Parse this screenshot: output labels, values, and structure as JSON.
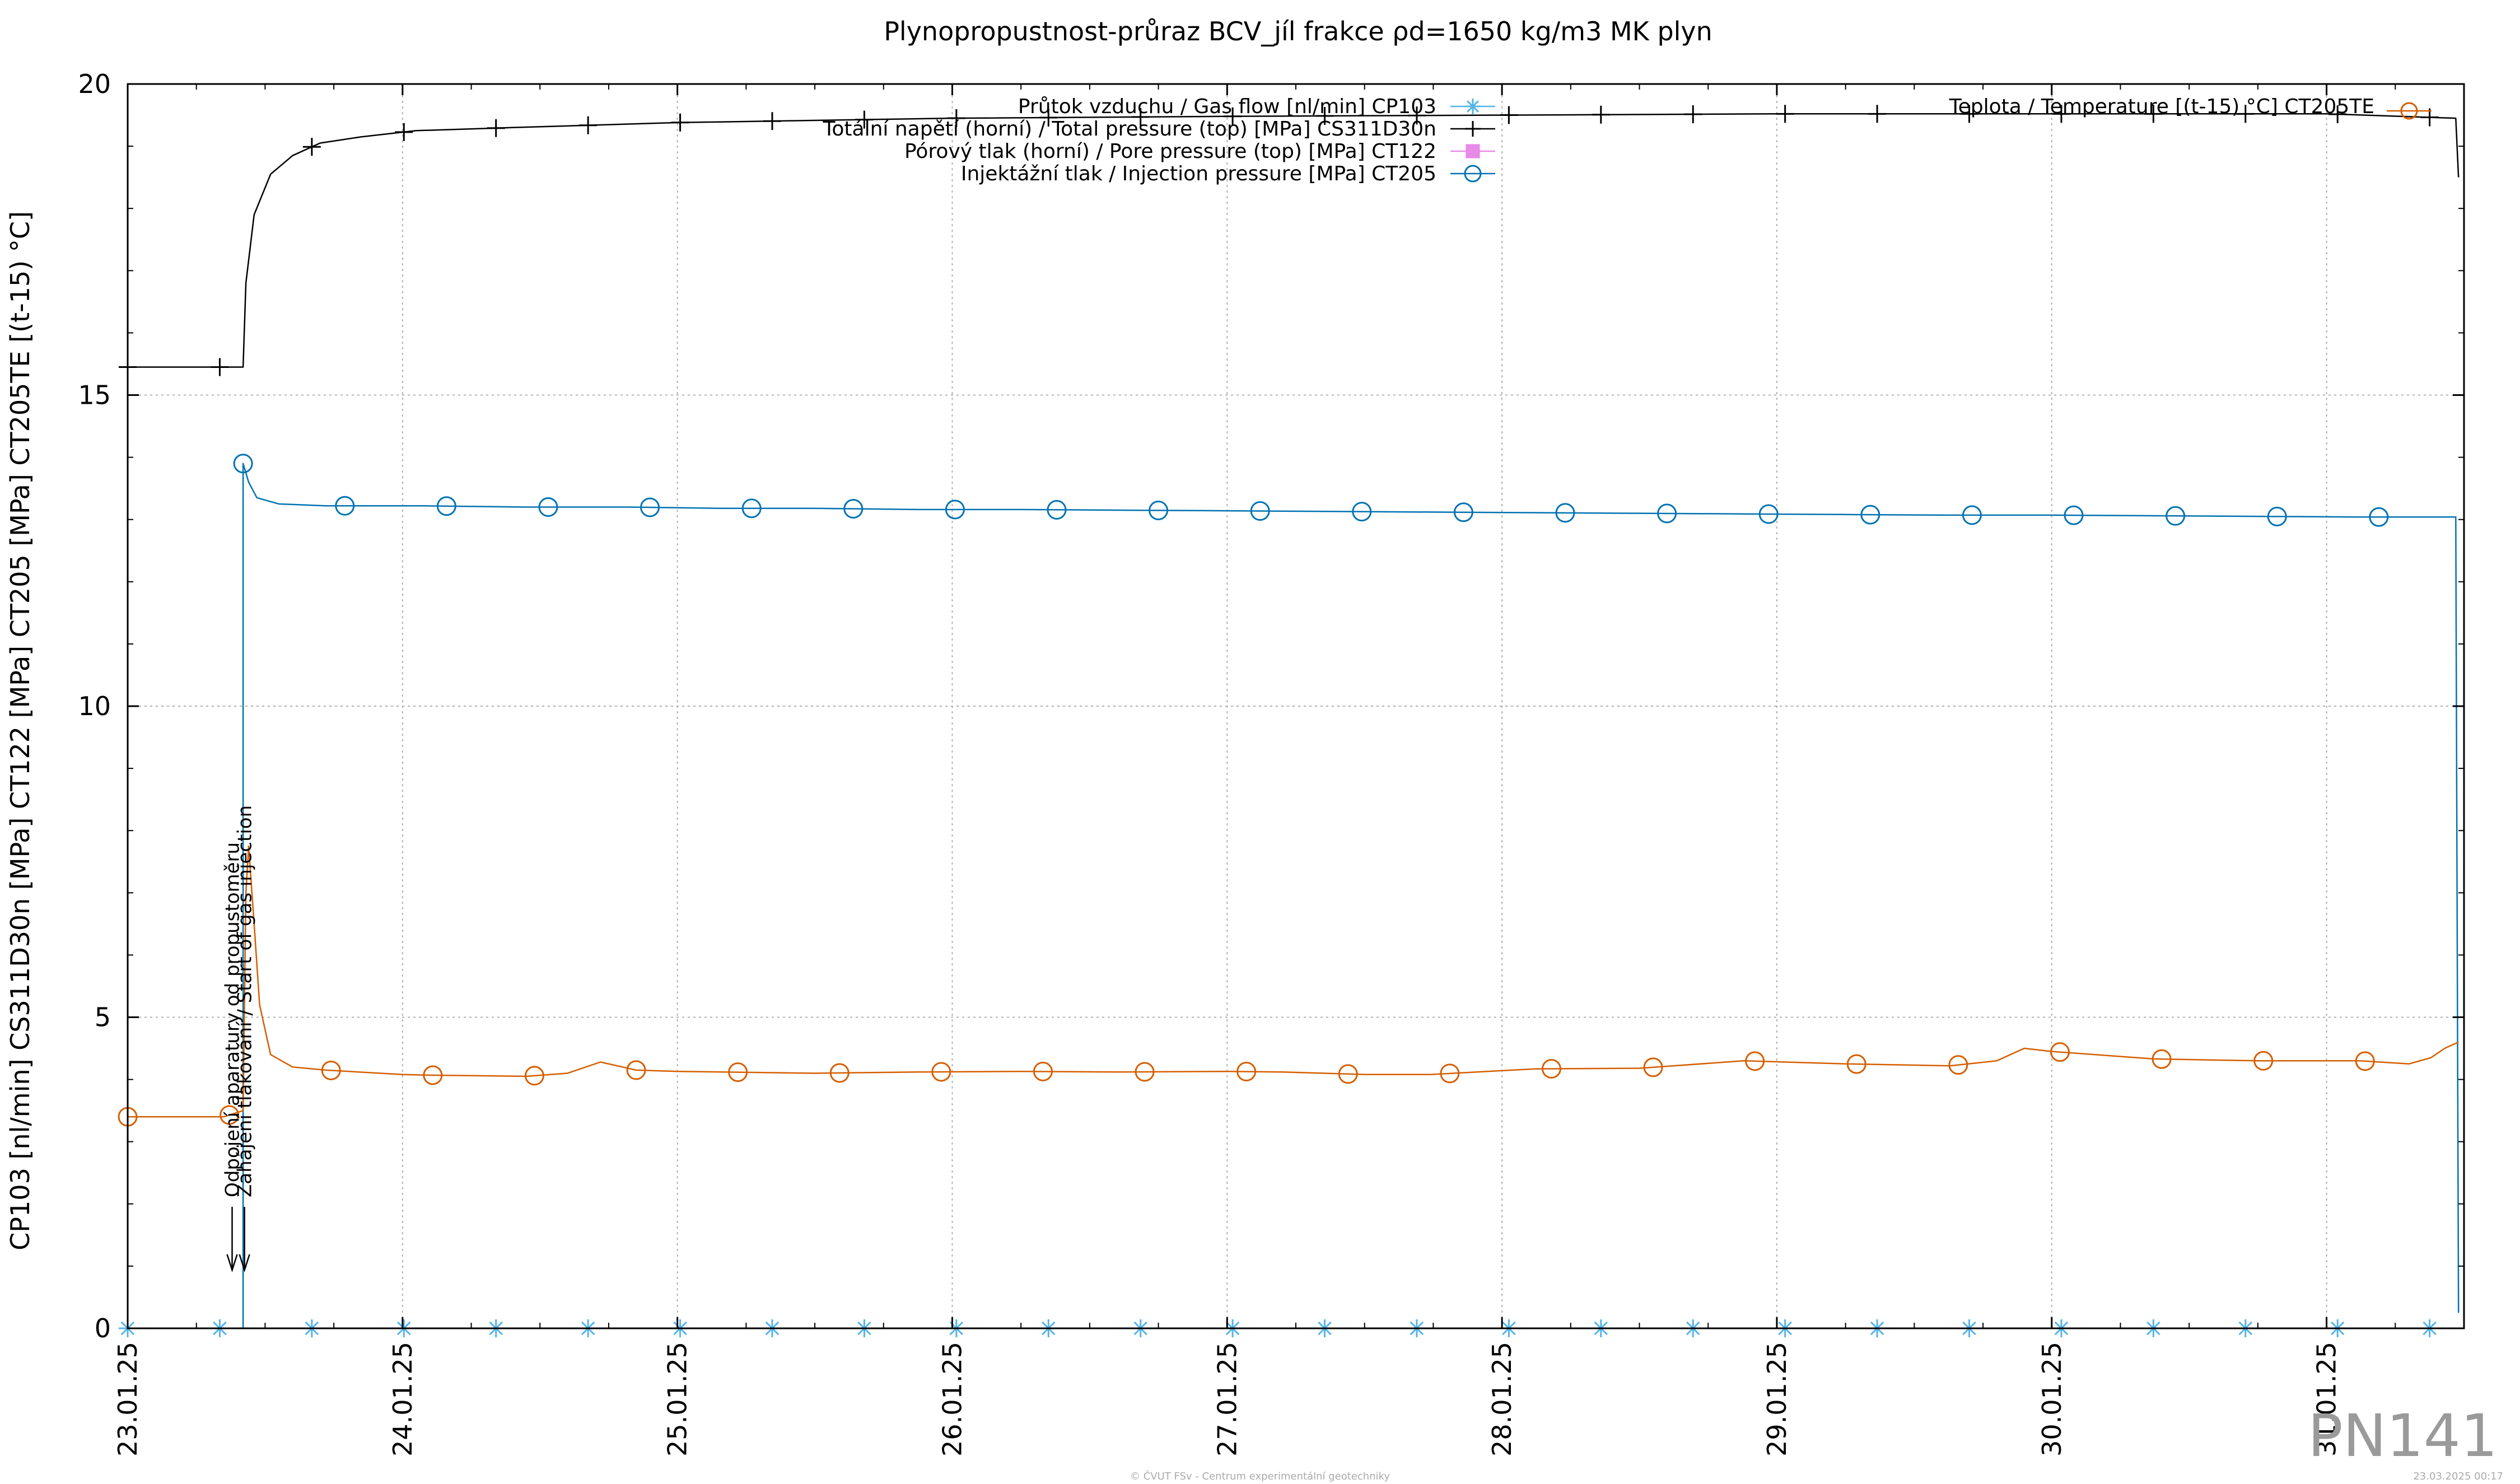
{
  "chart_data": {
    "type": "line",
    "title": "Plynopropustnost-průraz BCV_jíl frakce ρd=1650 kg/m3 MK plyn",
    "ylabel": "CP103 [nl/min] CS311D30n [MPa] CT122 [MPa] CT205 [MPa] CT205TE [(t-15) °C]",
    "xlabel": "",
    "xlim": [
      "23.01.25 00:00",
      "31.01.25 12:00"
    ],
    "ylim": [
      0,
      20
    ],
    "x_ticks": [
      "23.01.25",
      "24.01.25",
      "25.01.25",
      "26.01.25",
      "27.01.25",
      "28.01.25",
      "29.01.25",
      "30.01.25",
      "31.01.25"
    ],
    "y_ticks": [
      "0",
      "5",
      "10",
      "15",
      "20"
    ],
    "grid": true,
    "legend_placement": "top-center",
    "series": [
      {
        "name": "Průtok vzduchu / Gas flow [nl/min] CP103",
        "color": "#56b4e9",
        "marker": "asterisk",
        "points": [
          [
            0,
            0
          ],
          [
            0.34,
            0
          ],
          [
            0.68,
            0
          ],
          [
            1.02,
            0
          ],
          [
            1.36,
            0
          ],
          [
            1.7,
            0
          ],
          [
            2.04,
            0
          ],
          [
            2.38,
            0
          ],
          [
            2.72,
            0
          ],
          [
            3.06,
            0
          ],
          [
            3.4,
            0
          ],
          [
            3.74,
            0
          ],
          [
            4.08,
            0
          ],
          [
            4.42,
            0
          ],
          [
            4.76,
            0
          ],
          [
            5.1,
            0
          ],
          [
            5.44,
            0
          ],
          [
            5.78,
            0
          ],
          [
            6.12,
            0
          ],
          [
            6.46,
            0
          ],
          [
            6.8,
            0
          ],
          [
            7.14,
            0
          ],
          [
            7.48,
            0
          ],
          [
            7.82,
            0
          ],
          [
            8.16,
            0
          ],
          [
            8.47,
            0
          ]
        ]
      },
      {
        "name": "Totální napětí (horní) / Total pressure (top) [MPa] CS311D30n",
        "color": "#000000",
        "marker": "plus",
        "points": [
          [
            0,
            15.45
          ],
          [
            0.35,
            15.45
          ],
          [
            0.42,
            15.45
          ],
          [
            0.43,
            16.8
          ],
          [
            0.46,
            17.9
          ],
          [
            0.52,
            18.55
          ],
          [
            0.6,
            18.85
          ],
          [
            0.7,
            19.05
          ],
          [
            0.85,
            19.15
          ],
          [
            1.05,
            19.25
          ],
          [
            1.4,
            19.3
          ],
          [
            2.0,
            19.38
          ],
          [
            3.0,
            19.45
          ],
          [
            4.0,
            19.48
          ],
          [
            5.0,
            19.5
          ],
          [
            6.0,
            19.52
          ],
          [
            7.0,
            19.52
          ],
          [
            8.0,
            19.52
          ],
          [
            8.47,
            19.45
          ],
          [
            8.48,
            18.5
          ]
        ]
      },
      {
        "name": "Pórový tlak (horní) / Pore pressure (top) [MPa] CT122",
        "color": "#e88ae8",
        "marker": "square",
        "points": []
      },
      {
        "name": "Injektážní tlak / Injection pressure [MPa] CT205",
        "color": "#0072b2",
        "marker": "circle",
        "points": [
          [
            0.42,
            0
          ],
          [
            0.42,
            13.9
          ],
          [
            0.44,
            13.6
          ],
          [
            0.47,
            13.35
          ],
          [
            0.55,
            13.25
          ],
          [
            0.72,
            13.22
          ],
          [
            1.08,
            13.22
          ],
          [
            1.45,
            13.2
          ],
          [
            1.82,
            13.2
          ],
          [
            2.16,
            13.18
          ],
          [
            2.5,
            13.18
          ],
          [
            2.88,
            13.16
          ],
          [
            3.25,
            13.16
          ],
          [
            3.6,
            13.15
          ],
          [
            4.0,
            13.14
          ],
          [
            4.37,
            13.13
          ],
          [
            4.74,
            13.12
          ],
          [
            5.12,
            13.11
          ],
          [
            5.5,
            13.1
          ],
          [
            5.88,
            13.09
          ],
          [
            6.25,
            13.08
          ],
          [
            6.63,
            13.07
          ],
          [
            7.0,
            13.07
          ],
          [
            7.37,
            13.06
          ],
          [
            7.75,
            13.05
          ],
          [
            8.12,
            13.04
          ],
          [
            8.47,
            13.04
          ],
          [
            8.48,
            0.25
          ]
        ]
      },
      {
        "name": "Teplota / Temperature [(t-15) °C] CT205TE",
        "color": "#d55e00",
        "marker": "circle",
        "points": [
          [
            0,
            3.4
          ],
          [
            0.35,
            3.4
          ],
          [
            0.42,
            3.5
          ],
          [
            0.43,
            7.0
          ],
          [
            0.44,
            7.75
          ],
          [
            0.46,
            6.5
          ],
          [
            0.48,
            5.2
          ],
          [
            0.52,
            4.4
          ],
          [
            0.6,
            4.2
          ],
          [
            0.72,
            4.15
          ],
          [
            1.0,
            4.08
          ],
          [
            1.08,
            4.07
          ],
          [
            1.45,
            4.05
          ],
          [
            1.6,
            4.1
          ],
          [
            1.72,
            4.28
          ],
          [
            1.85,
            4.15
          ],
          [
            2.0,
            4.13
          ],
          [
            2.5,
            4.1
          ],
          [
            2.88,
            4.12
          ],
          [
            3.25,
            4.13
          ],
          [
            3.6,
            4.12
          ],
          [
            4.0,
            4.13
          ],
          [
            4.2,
            4.12
          ],
          [
            4.5,
            4.08
          ],
          [
            4.74,
            4.08
          ],
          [
            5.12,
            4.17
          ],
          [
            5.5,
            4.18
          ],
          [
            5.88,
            4.3
          ],
          [
            6.25,
            4.25
          ],
          [
            6.63,
            4.22
          ],
          [
            6.8,
            4.3
          ],
          [
            6.9,
            4.5
          ],
          [
            7.0,
            4.45
          ],
          [
            7.37,
            4.33
          ],
          [
            7.75,
            4.3
          ],
          [
            8.12,
            4.3
          ],
          [
            8.3,
            4.25
          ],
          [
            8.38,
            4.35
          ],
          [
            8.43,
            4.5
          ],
          [
            8.48,
            4.6
          ]
        ]
      }
    ],
    "annotations": [
      "Odpojení aparatury od propustoměru",
      "Zahájení tlakování / Start of gas injection"
    ]
  },
  "watermark": "PN141",
  "footer_center": "© ČVUT FSv - Centrum experimentální geotechniky",
  "footer_right": "23.03.2025 00:17"
}
